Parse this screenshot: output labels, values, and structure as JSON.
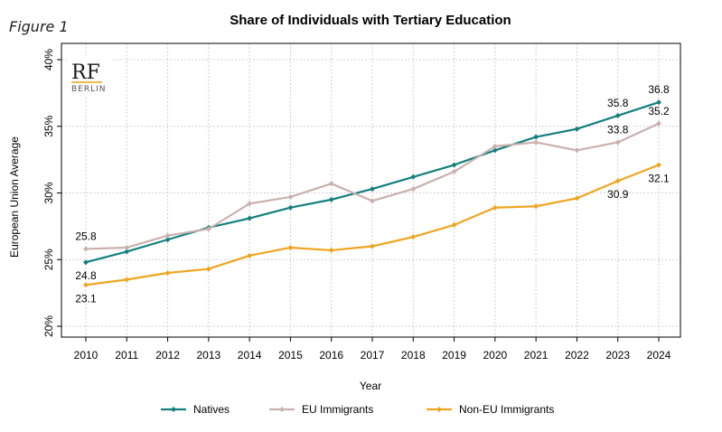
{
  "figure_label": "Figure 1",
  "logo": {
    "text": "RF",
    "subtext": "BERLIN",
    "accent_color": "#e8a317"
  },
  "colors": {
    "natives": "#13807f",
    "eu": "#c9b1ad",
    "non_eu": "#f0a51f",
    "grid": "#d0d0d0"
  },
  "chart_data": {
    "type": "line",
    "title": "Share of Individuals with Tertiary Education",
    "xlabel": "Year",
    "ylabel": "European Union Average",
    "x": [
      "2010",
      "2011",
      "2012",
      "2013",
      "2014",
      "2015",
      "2016",
      "2017",
      "2018",
      "2019",
      "2020",
      "2021",
      "2022",
      "2023",
      "2024"
    ],
    "ylim": [
      20,
      40
    ],
    "yticks": [
      20,
      25,
      30,
      35,
      40
    ],
    "ytick_labels": [
      "20%",
      "25%",
      "30%",
      "35%",
      "40%"
    ],
    "grid": true,
    "legend_position": "bottom",
    "series": [
      {
        "name": "Natives",
        "color": "#13807f",
        "values": [
          24.8,
          25.6,
          26.5,
          27.4,
          28.1,
          28.9,
          29.5,
          30.3,
          31.2,
          32.1,
          33.2,
          34.2,
          34.8,
          35.8,
          36.8
        ]
      },
      {
        "name": "EU Immigrants",
        "color": "#c9b1ad",
        "values": [
          25.8,
          25.9,
          26.8,
          27.3,
          29.2,
          29.7,
          30.7,
          29.4,
          30.3,
          31.6,
          33.5,
          33.8,
          33.2,
          33.8,
          35.2
        ]
      },
      {
        "name": "Non-EU Immigrants",
        "color": "#f0a51f",
        "values": [
          23.1,
          23.5,
          24.0,
          24.3,
          25.3,
          25.9,
          25.7,
          26.0,
          26.7,
          27.6,
          28.9,
          29.0,
          29.6,
          30.9,
          32.1
        ]
      }
    ],
    "annotations": [
      {
        "series": 1,
        "index": 0,
        "text": "25.8",
        "placement": "above"
      },
      {
        "series": 0,
        "index": 0,
        "text": "24.8",
        "placement": "below"
      },
      {
        "series": 2,
        "index": 0,
        "text": "23.1",
        "placement": "below"
      },
      {
        "series": 0,
        "index": 13,
        "text": "35.8",
        "placement": "above"
      },
      {
        "series": 0,
        "index": 14,
        "text": "36.8",
        "placement": "above"
      },
      {
        "series": 1,
        "index": 13,
        "text": "33.8",
        "placement": "above"
      },
      {
        "series": 1,
        "index": 14,
        "text": "35.2",
        "placement": "above"
      },
      {
        "series": 2,
        "index": 13,
        "text": "30.9",
        "placement": "below"
      },
      {
        "series": 2,
        "index": 14,
        "text": "32.1",
        "placement": "below"
      }
    ]
  }
}
